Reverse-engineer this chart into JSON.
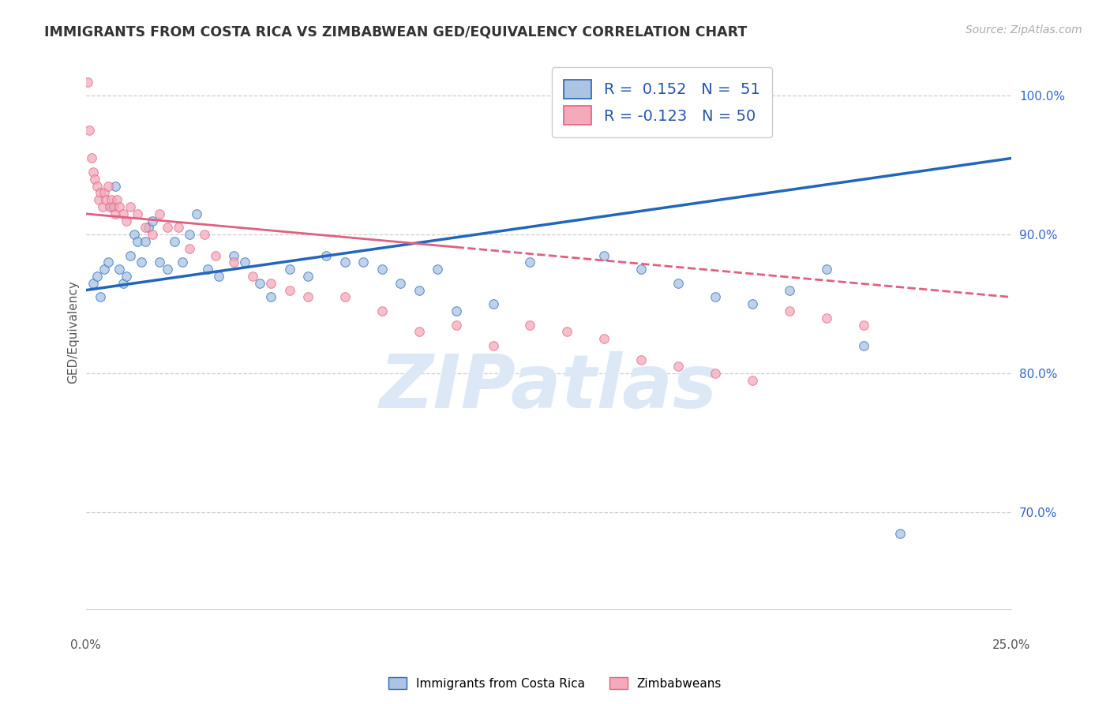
{
  "title": "IMMIGRANTS FROM COSTA RICA VS ZIMBABWEAN GED/EQUIVALENCY CORRELATION CHART",
  "source": "Source: ZipAtlas.com",
  "ylabel": "GED/Equivalency",
  "xmin": 0.0,
  "xmax": 25.0,
  "ymin": 63.0,
  "ymax": 103.0,
  "blue_R": 0.152,
  "blue_N": 51,
  "pink_R": -0.123,
  "pink_N": 50,
  "blue_color": "#aac4e2",
  "blue_line_color": "#2266bb",
  "pink_color": "#f4aabb",
  "pink_line_color": "#e06080",
  "watermark_color": "#dce8f5",
  "blue_trend_x0": 0.0,
  "blue_trend_y0": 86.0,
  "blue_trend_x1": 25.0,
  "blue_trend_y1": 95.5,
  "pink_trend_x0": 0.0,
  "pink_trend_y0": 91.5,
  "pink_trend_x1": 25.0,
  "pink_trend_y1": 85.5,
  "pink_solid_end_x": 10.0,
  "blue_scatter_x": [
    0.2,
    0.3,
    0.4,
    0.5,
    0.6,
    0.7,
    0.8,
    0.9,
    1.0,
    1.1,
    1.2,
    1.3,
    1.4,
    1.5,
    1.6,
    1.7,
    1.8,
    2.0,
    2.2,
    2.4,
    2.6,
    2.8,
    3.0,
    3.3,
    3.6,
    4.0,
    4.3,
    4.7,
    5.0,
    5.5,
    6.0,
    6.5,
    7.0,
    7.5,
    8.0,
    8.5,
    9.0,
    9.5,
    10.0,
    11.0,
    12.0,
    13.0,
    14.0,
    15.0,
    16.0,
    17.0,
    18.0,
    19.0,
    20.0,
    21.0,
    22.0
  ],
  "blue_scatter_y": [
    86.5,
    87.0,
    85.5,
    87.5,
    88.0,
    92.0,
    93.5,
    87.5,
    86.5,
    87.0,
    88.5,
    90.0,
    89.5,
    88.0,
    89.5,
    90.5,
    91.0,
    88.0,
    87.5,
    89.5,
    88.0,
    90.0,
    91.5,
    87.5,
    87.0,
    88.5,
    88.0,
    86.5,
    85.5,
    87.5,
    87.0,
    88.5,
    88.0,
    88.0,
    87.5,
    86.5,
    86.0,
    87.5,
    84.5,
    85.0,
    88.0,
    97.5,
    88.5,
    87.5,
    86.5,
    85.5,
    85.0,
    86.0,
    87.5,
    82.0,
    68.5
  ],
  "pink_scatter_x": [
    0.05,
    0.1,
    0.15,
    0.2,
    0.25,
    0.3,
    0.35,
    0.4,
    0.45,
    0.5,
    0.55,
    0.6,
    0.65,
    0.7,
    0.75,
    0.8,
    0.85,
    0.9,
    1.0,
    1.1,
    1.2,
    1.4,
    1.6,
    1.8,
    2.0,
    2.2,
    2.5,
    2.8,
    3.2,
    3.5,
    4.0,
    4.5,
    5.0,
    5.5,
    6.0,
    7.0,
    8.0,
    9.0,
    10.0,
    11.0,
    12.0,
    13.0,
    14.0,
    15.0,
    16.0,
    17.0,
    18.0,
    19.0,
    20.0,
    21.0
  ],
  "pink_scatter_y": [
    101.0,
    97.5,
    95.5,
    94.5,
    94.0,
    93.5,
    92.5,
    93.0,
    92.0,
    93.0,
    92.5,
    93.5,
    92.0,
    92.5,
    92.0,
    91.5,
    92.5,
    92.0,
    91.5,
    91.0,
    92.0,
    91.5,
    90.5,
    90.0,
    91.5,
    90.5,
    90.5,
    89.0,
    90.0,
    88.5,
    88.0,
    87.0,
    86.5,
    86.0,
    85.5,
    85.5,
    84.5,
    83.0,
    83.5,
    82.0,
    83.5,
    83.0,
    82.5,
    81.0,
    80.5,
    80.0,
    79.5,
    84.5,
    84.0,
    83.5
  ]
}
